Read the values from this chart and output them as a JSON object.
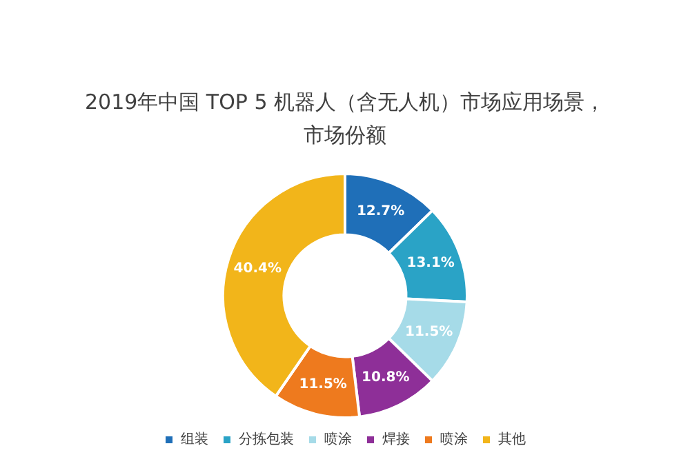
{
  "chart_data": {
    "type": "donut",
    "title": "2019年中国 TOP 5 机器人（含无人机）市场应用场景，市场份额",
    "categories": [
      "组装",
      "分拣包装",
      "喷涂",
      "焊接",
      "喷涂",
      "其他"
    ],
    "values": [
      12.7,
      13.1,
      11.5,
      10.8,
      11.5,
      40.4
    ],
    "value_labels": [
      "12.7%",
      "13.1%",
      "11.5%",
      "10.8%",
      "11.5%",
      "40.4%"
    ],
    "colors": [
      "#1f6fb8",
      "#2aa3c6",
      "#a6dbe8",
      "#8e2f98",
      "#ee7a1e",
      "#f2b51a"
    ],
    "legend": "bottom"
  }
}
